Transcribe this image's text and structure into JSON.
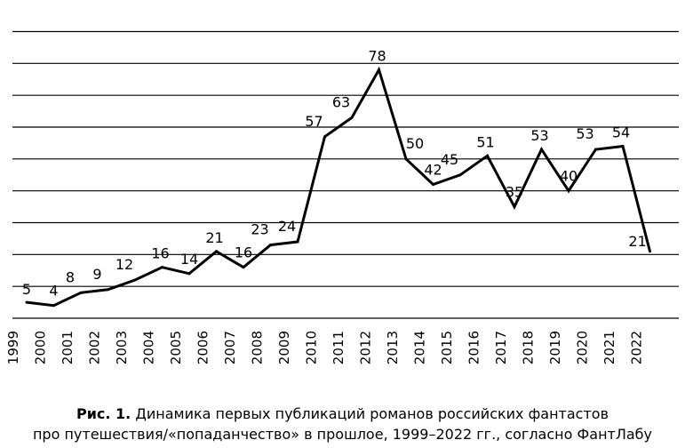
{
  "chart_data": {
    "type": "line",
    "title": "",
    "xlabel": "",
    "ylabel": "",
    "x": [
      "1999",
      "2000",
      "2001",
      "2002",
      "2003",
      "2004",
      "2005",
      "2006",
      "2007",
      "2008",
      "2009",
      "2010",
      "2011",
      "2012",
      "2013",
      "2014",
      "2015",
      "2016",
      "2017",
      "2018",
      "2019",
      "2020",
      "2021",
      "2022"
    ],
    "series": [
      {
        "name": "Первые публикации романов",
        "values": [
          5,
          4,
          8,
          9,
          12,
          16,
          14,
          21,
          16,
          23,
          24,
          57,
          63,
          78,
          50,
          42,
          45,
          51,
          35,
          53,
          40,
          53,
          54,
          21
        ],
        "labels": [
          "5",
          "4",
          "8",
          "9",
          "12",
          "16",
          "14",
          "21",
          "16",
          "23",
          "24",
          "57",
          "63",
          "78",
          "50",
          "42",
          "45",
          "51",
          "35",
          "53",
          "40",
          "53",
          "54",
          "21"
        ]
      }
    ],
    "ylim": [
      0,
      90
    ],
    "grid_step": 10,
    "grid": true,
    "line_color": "#000000"
  },
  "caption": {
    "label": "Рис. 1.",
    "line1": " Динамика первых публикаций романов российских фантастов",
    "line2": "про путешествия/«попаданчество» в прошлое, 1999–2022 гг., согласно ФантЛабу"
  }
}
